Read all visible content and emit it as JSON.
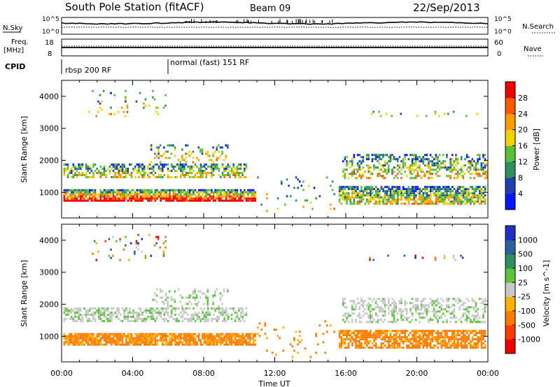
{
  "header": {
    "title": "South Pole Station (fitACF)",
    "beam": "Beam 09",
    "date": "22/Sep/2013"
  },
  "top_panels": {
    "nsky_label": "N.Sky",
    "nsearch_label": "N.Search",
    "noise_ticks": [
      "10^5",
      "10^0"
    ],
    "freq_label_line1": "Freq.",
    "freq_label_line2": "[MHz]",
    "freq_ticks": [
      "18",
      "8"
    ],
    "nave_label": "Nave",
    "nave_ticks": [
      "60",
      "0"
    ],
    "cpid_label": "CPID",
    "cpid_segments": [
      {
        "label": "rbsp 200 RF",
        "start_hour": 0
      },
      {
        "label": "normal (fast) 151 RF",
        "start_hour": 6
      }
    ]
  },
  "chart_data": [
    {
      "type": "heatmap",
      "parameter": "Power",
      "ylabel": "Slant Range [km]",
      "xlabel": "Time UT",
      "xlim": [
        0,
        24
      ],
      "ylim": [
        200,
        4500
      ],
      "x_ticks": [
        "00:00",
        "04:00",
        "08:00",
        "12:00",
        "16:00",
        "20:00",
        "00:00"
      ],
      "y_ticks": [
        1000,
        2000,
        3000,
        4000
      ],
      "colorbar": {
        "label": "Power [dB]",
        "ticks": [
          4,
          8,
          12,
          16,
          20,
          24,
          28
        ],
        "colors": [
          "#0016ff",
          "#1f3fb0",
          "#2f8f5f",
          "#57c13a",
          "#f2d200",
          "#ff9a00",
          "#ff5a00",
          "#f00000"
        ]
      }
    },
    {
      "type": "heatmap",
      "parameter": "Velocity",
      "ylabel": "Slant Range [km]",
      "xlabel": "Time UT",
      "xlim": [
        0,
        24
      ],
      "ylim": [
        200,
        4500
      ],
      "x_ticks": [
        "00:00",
        "04:00",
        "08:00",
        "12:00",
        "16:00",
        "20:00",
        "00:00"
      ],
      "y_ticks": [
        1000,
        2000,
        3000,
        4000
      ],
      "colorbar": {
        "label": "Velocity [m s^-1]",
        "ticks": [
          1000,
          500,
          100,
          25,
          -25,
          -100,
          -500,
          -1000
        ],
        "colors": [
          "#1f2fc0",
          "#2f5fa0",
          "#2f8f5f",
          "#5cc43a",
          "#c8c8c8",
          "#ffb000",
          "#ff7a00",
          "#ff3a00",
          "#ee0000"
        ]
      }
    }
  ]
}
